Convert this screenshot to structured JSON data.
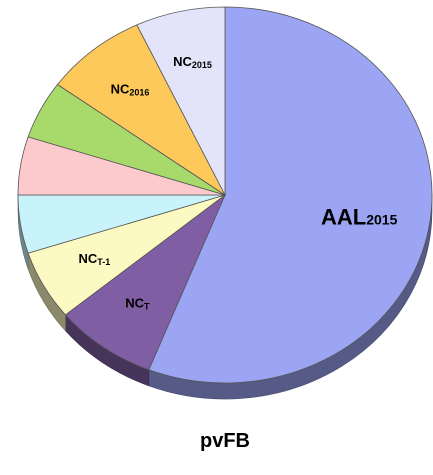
{
  "chart_data": {
    "type": "pie3d",
    "title": "pvFB",
    "categories": [
      "AAL",
      "NC",
      "NC",
      null,
      null,
      null,
      "NC",
      "NC"
    ],
    "subscripts": [
      "2015",
      "T",
      "T-1",
      null,
      null,
      null,
      "2016",
      "2015"
    ],
    "values": [
      56,
      8,
      6,
      5,
      5,
      5,
      8,
      7
    ],
    "colors": [
      "#9ba5f3",
      "#7f5ea3",
      "#fdf9c2",
      "#c9f3fb",
      "#fcc9cd",
      "#a8d96b",
      "#fdc95b",
      "#e3e3fa"
    ],
    "start_angle": 0,
    "direction": "clockwise"
  }
}
